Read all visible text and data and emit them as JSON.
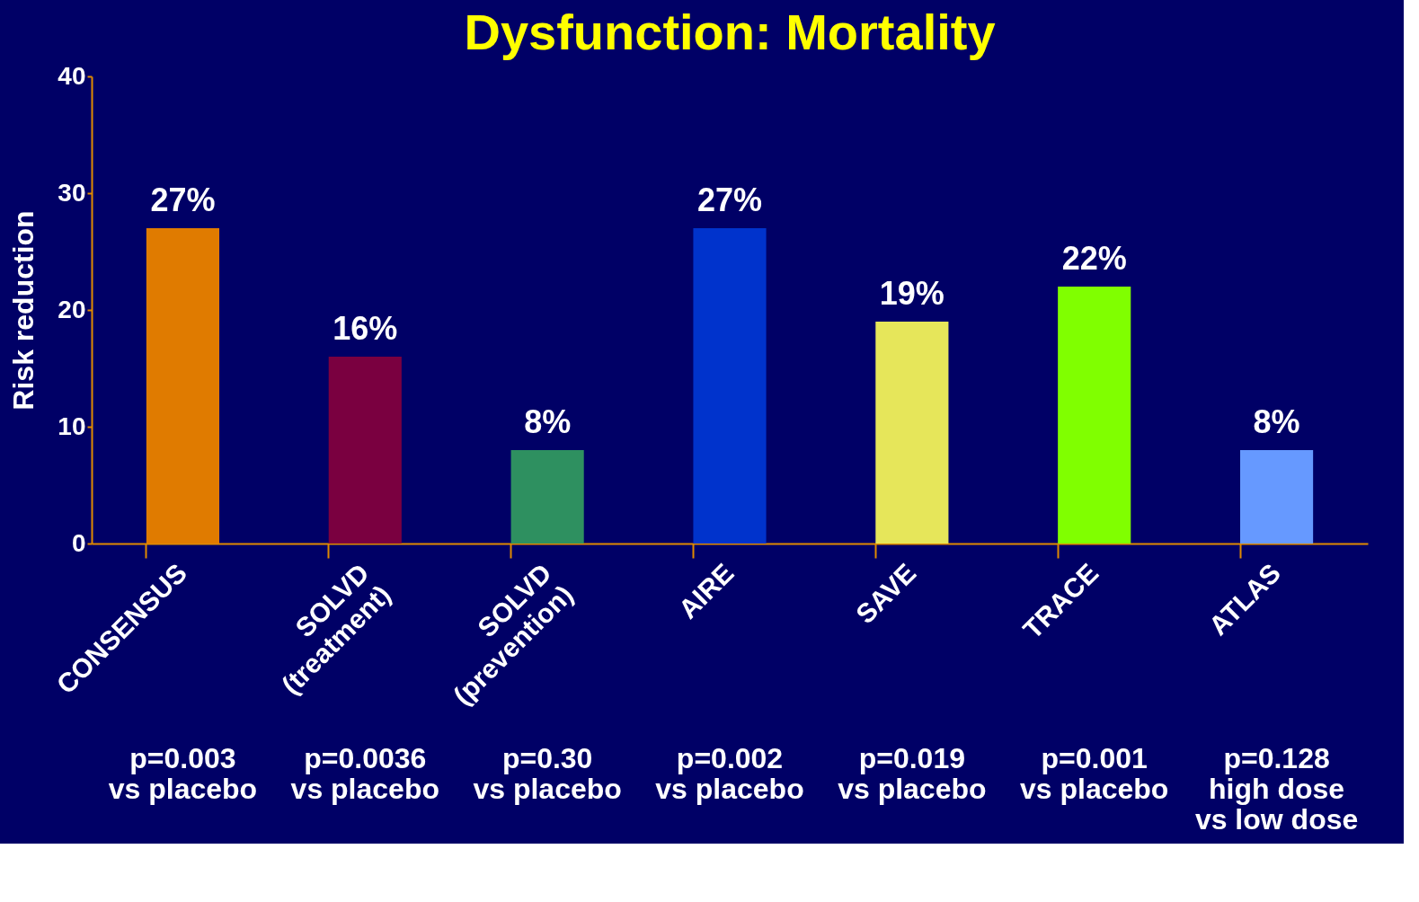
{
  "chart_data": {
    "type": "bar",
    "title": "Dysfunction: Mortality",
    "ylabel": "Risk reduction",
    "categories": [
      "CONSENSUS",
      "SOLVD\n(treatment)",
      "SOLVD\n(prevention)",
      "AIRE",
      "SAVE",
      "TRACE",
      "ATLAS"
    ],
    "values": [
      27,
      16,
      8,
      27,
      19,
      22,
      8
    ],
    "colors": [
      "#e07b00",
      "#7a0040",
      "#2e9060",
      "#0033cc",
      "#e6e65a",
      "#80ff00",
      "#6699ff"
    ],
    "value_labels": [
      "27%",
      "16%",
      "8%",
      "27%",
      "19%",
      "22%",
      "8%"
    ],
    "annotations": [
      "p=0.003\nvs placebo",
      "p=0.0036\nvs placebo",
      "p=0.30\nvs placebo",
      "p=0.002\nvs placebo",
      "p=0.019\nvs placebo",
      "p=0.001\nvs placebo",
      "p=0.128\nhigh dose\nvs low dose"
    ],
    "ylim": [
      0,
      40
    ],
    "yticks": [
      0,
      10,
      20,
      30,
      40
    ],
    "grid": false
  }
}
